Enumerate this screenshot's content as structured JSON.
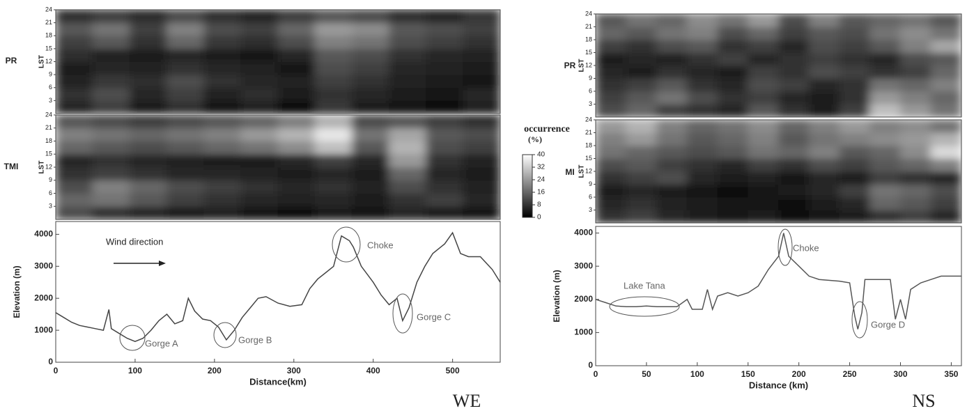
{
  "chart_data": [
    {
      "type": "heatmap",
      "name": "PR",
      "ylabel": "LST",
      "ylim": [
        0,
        24
      ],
      "yticks": [
        3,
        6,
        9,
        12,
        15,
        18,
        21,
        24
      ],
      "values": [
        [
          6,
          10,
          4,
          8,
          3,
          5,
          2,
          9,
          4,
          3,
          2,
          5
        ],
        [
          8,
          12,
          6,
          10,
          5,
          7,
          4,
          8,
          6,
          4,
          3,
          6
        ],
        [
          5,
          9,
          7,
          12,
          8,
          6,
          5,
          10,
          8,
          5,
          4,
          3
        ],
        [
          4,
          6,
          5,
          8,
          6,
          5,
          3,
          12,
          10,
          6,
          5,
          4
        ],
        [
          7,
          5,
          4,
          6,
          4,
          3,
          6,
          14,
          12,
          8,
          6,
          5
        ],
        [
          10,
          14,
          8,
          16,
          9,
          7,
          12,
          20,
          18,
          12,
          10,
          8
        ],
        [
          14,
          18,
          10,
          20,
          12,
          10,
          16,
          24,
          22,
          14,
          12,
          10
        ],
        [
          8,
          10,
          7,
          12,
          8,
          6,
          10,
          14,
          12,
          8,
          6,
          9
        ]
      ]
    },
    {
      "type": "heatmap",
      "name": "TMI",
      "ylabel": "LST",
      "ylim": [
        0,
        24
      ],
      "yticks": [
        3,
        6,
        9,
        12,
        15,
        18,
        21,
        24
      ],
      "values": [
        [
          12,
          8,
          6,
          4,
          5,
          3,
          2,
          4,
          3,
          6,
          4,
          3
        ],
        [
          16,
          18,
          14,
          10,
          8,
          6,
          5,
          6,
          4,
          8,
          10,
          6
        ],
        [
          12,
          20,
          16,
          12,
          10,
          8,
          6,
          8,
          5,
          12,
          8,
          5
        ],
        [
          8,
          10,
          8,
          6,
          6,
          5,
          4,
          6,
          4,
          16,
          6,
          4
        ],
        [
          6,
          8,
          6,
          5,
          4,
          4,
          6,
          10,
          6,
          24,
          8,
          5
        ],
        [
          16,
          14,
          12,
          14,
          16,
          18,
          22,
          30,
          14,
          28,
          12,
          10
        ],
        [
          20,
          18,
          16,
          18,
          20,
          24,
          28,
          36,
          18,
          26,
          14,
          12
        ],
        [
          14,
          12,
          10,
          12,
          14,
          16,
          20,
          28,
          12,
          14,
          10,
          8
        ]
      ]
    },
    {
      "type": "line",
      "xlabel": "Distance(km)",
      "ylabel": "Elevation (m)",
      "color": "#444444",
      "xlim": [
        0,
        560
      ],
      "ylim": [
        0,
        4400
      ],
      "xticks": [
        0,
        100,
        200,
        300,
        400,
        500
      ],
      "yticks": [
        0,
        1000,
        2000,
        3000,
        4000
      ],
      "x": [
        0,
        10,
        20,
        30,
        40,
        50,
        60,
        67,
        70,
        80,
        90,
        100,
        110,
        120,
        130,
        140,
        150,
        160,
        167,
        175,
        185,
        195,
        205,
        215,
        225,
        235,
        245,
        255,
        265,
        280,
        295,
        310,
        320,
        330,
        340,
        350,
        360,
        370,
        375,
        385,
        400,
        410,
        420,
        430,
        437,
        445,
        455,
        465,
        475,
        490,
        500,
        510,
        520,
        535,
        550,
        560
      ],
      "values": [
        1550,
        1400,
        1250,
        1150,
        1100,
        1050,
        1000,
        1650,
        1050,
        900,
        750,
        650,
        750,
        1000,
        1300,
        1500,
        1200,
        1300,
        2000,
        1600,
        1350,
        1300,
        1100,
        700,
        1000,
        1400,
        1700,
        2000,
        2050,
        1850,
        1750,
        1800,
        2300,
        2600,
        2800,
        3000,
        3950,
        3800,
        3600,
        3000,
        2500,
        2100,
        1800,
        2000,
        1300,
        1700,
        2500,
        3000,
        3400,
        3700,
        4050,
        3400,
        3300,
        3300,
        2900,
        2500
      ],
      "annotations": [
        "Wind direction",
        "Gorge A",
        "Gorge B",
        "Choke",
        "Gorge C"
      ]
    },
    {
      "type": "heatmap",
      "name": "PR",
      "ylabel": "LST",
      "ylim": [
        0,
        24
      ],
      "yticks": [
        3,
        6,
        9,
        12,
        15,
        18,
        21,
        24
      ],
      "values": [
        [
          12,
          16,
          10,
          8,
          6,
          14,
          8,
          4,
          10,
          30,
          24,
          18
        ],
        [
          10,
          14,
          18,
          12,
          8,
          10,
          6,
          4,
          8,
          24,
          20,
          16
        ],
        [
          8,
          10,
          14,
          8,
          6,
          12,
          10,
          6,
          8,
          18,
          16,
          20
        ],
        [
          6,
          4,
          8,
          6,
          4,
          10,
          8,
          12,
          10,
          8,
          10,
          16
        ],
        [
          4,
          6,
          5,
          8,
          10,
          6,
          8,
          10,
          8,
          6,
          12,
          14
        ],
        [
          10,
          8,
          12,
          14,
          8,
          10,
          6,
          12,
          10,
          14,
          20,
          26
        ],
        [
          16,
          14,
          18,
          20,
          12,
          16,
          10,
          14,
          12,
          18,
          22,
          18
        ],
        [
          14,
          18,
          16,
          22,
          18,
          24,
          12,
          20,
          14,
          16,
          18,
          14
        ]
      ]
    },
    {
      "type": "heatmap",
      "name": "MI",
      "ylabel": "LST",
      "ylim": [
        0,
        24
      ],
      "yticks": [
        3,
        6,
        9,
        12,
        15,
        18,
        21,
        24
      ],
      "values": [
        [
          8,
          10,
          6,
          4,
          3,
          4,
          2,
          3,
          4,
          8,
          10,
          6
        ],
        [
          6,
          8,
          5,
          4,
          3,
          3,
          2,
          4,
          6,
          16,
          14,
          10
        ],
        [
          4,
          6,
          4,
          3,
          2,
          3,
          4,
          6,
          10,
          18,
          16,
          12
        ],
        [
          8,
          10,
          12,
          6,
          4,
          5,
          3,
          6,
          4,
          10,
          8,
          6
        ],
        [
          12,
          14,
          10,
          8,
          6,
          10,
          8,
          12,
          10,
          14,
          16,
          20
        ],
        [
          18,
          16,
          14,
          12,
          14,
          18,
          16,
          20,
          14,
          16,
          22,
          34
        ],
        [
          20,
          24,
          18,
          14,
          16,
          20,
          14,
          18,
          20,
          22,
          24,
          28
        ],
        [
          24,
          28,
          20,
          16,
          18,
          22,
          16,
          20,
          24,
          20,
          22,
          18
        ]
      ]
    },
    {
      "type": "line",
      "xlabel": "Distance (km)",
      "ylabel": "Elevation (m)",
      "color": "#555555",
      "xlim": [
        0,
        360
      ],
      "ylim": [
        0,
        4200
      ],
      "xticks": [
        0,
        50,
        100,
        150,
        200,
        250,
        300,
        350
      ],
      "yticks": [
        0,
        1000,
        2000,
        3000,
        4000
      ],
      "x": [
        0,
        10,
        20,
        30,
        40,
        50,
        60,
        70,
        80,
        90,
        95,
        100,
        105,
        110,
        115,
        120,
        130,
        140,
        150,
        160,
        170,
        180,
        185,
        190,
        200,
        210,
        220,
        240,
        250,
        255,
        258,
        262,
        265,
        270,
        280,
        290,
        295,
        300,
        305,
        310,
        315,
        320,
        330,
        340,
        350,
        360
      ],
      "values": [
        2000,
        1900,
        1800,
        1780,
        1780,
        1800,
        1780,
        1780,
        1780,
        2000,
        1700,
        1700,
        1700,
        2300,
        1700,
        2100,
        2200,
        2100,
        2200,
        2400,
        2900,
        3300,
        4000,
        3300,
        3000,
        2700,
        2600,
        2550,
        2500,
        1500,
        1100,
        1600,
        2600,
        2600,
        2600,
        2600,
        1400,
        2000,
        1400,
        2300,
        2400,
        2500,
        2600,
        2700,
        2700,
        2700
      ],
      "annotations": [
        "Lake Tana",
        "Choke",
        "Gorge D"
      ]
    }
  ],
  "colorbar": {
    "title": "occurrence",
    "unit": "(%)",
    "lim": [
      0,
      40
    ],
    "ticks": [
      0,
      8,
      16,
      24,
      32,
      40
    ]
  },
  "panels": [
    "WE",
    "NS"
  ]
}
